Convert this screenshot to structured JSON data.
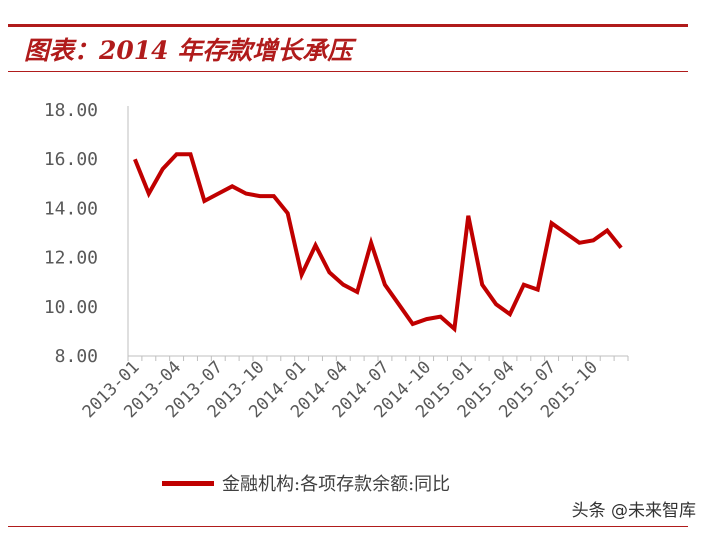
{
  "header": {
    "title": "图表：2014 年存款增长承压"
  },
  "watermark": "头条 @未来智库",
  "chart_data": {
    "type": "line",
    "title": "图表：2014 年存款增长承压",
    "ylim": [
      8,
      18
    ],
    "yticks": [
      "8.00",
      "10.00",
      "12.00",
      "14.00",
      "16.00",
      "18.00"
    ],
    "xtick_labels": [
      "2013-01",
      "2013-04",
      "2013-07",
      "2013-10",
      "2014-01",
      "2014-04",
      "2014-07",
      "2014-10",
      "2015-01",
      "2015-04",
      "2015-07",
      "2015-10"
    ],
    "x": [
      "2013-01",
      "2013-02",
      "2013-03",
      "2013-04",
      "2013-05",
      "2013-06",
      "2013-07",
      "2013-08",
      "2013-09",
      "2013-10",
      "2013-11",
      "2013-12",
      "2014-01",
      "2014-02",
      "2014-03",
      "2014-04",
      "2014-05",
      "2014-06",
      "2014-07",
      "2014-08",
      "2014-09",
      "2014-10",
      "2014-11",
      "2014-12",
      "2015-01",
      "2015-02",
      "2015-03",
      "2015-04",
      "2015-05",
      "2015-06",
      "2015-07",
      "2015-08",
      "2015-09",
      "2015-10",
      "2015-11",
      "2015-12"
    ],
    "series": [
      {
        "name": "金融机构:各项存款余额:同比",
        "color": "#c00000",
        "values": [
          16.0,
          14.6,
          15.6,
          16.2,
          16.2,
          14.3,
          14.6,
          14.9,
          14.6,
          14.5,
          14.5,
          13.8,
          11.3,
          12.5,
          11.4,
          10.9,
          10.6,
          12.6,
          10.9,
          10.1,
          9.3,
          9.5,
          9.6,
          9.1,
          13.7,
          10.9,
          10.1,
          9.7,
          10.9,
          10.7,
          13.4,
          13.0,
          12.6,
          12.7,
          13.1,
          12.4
        ]
      }
    ],
    "grid": false,
    "legend": "bottom"
  }
}
